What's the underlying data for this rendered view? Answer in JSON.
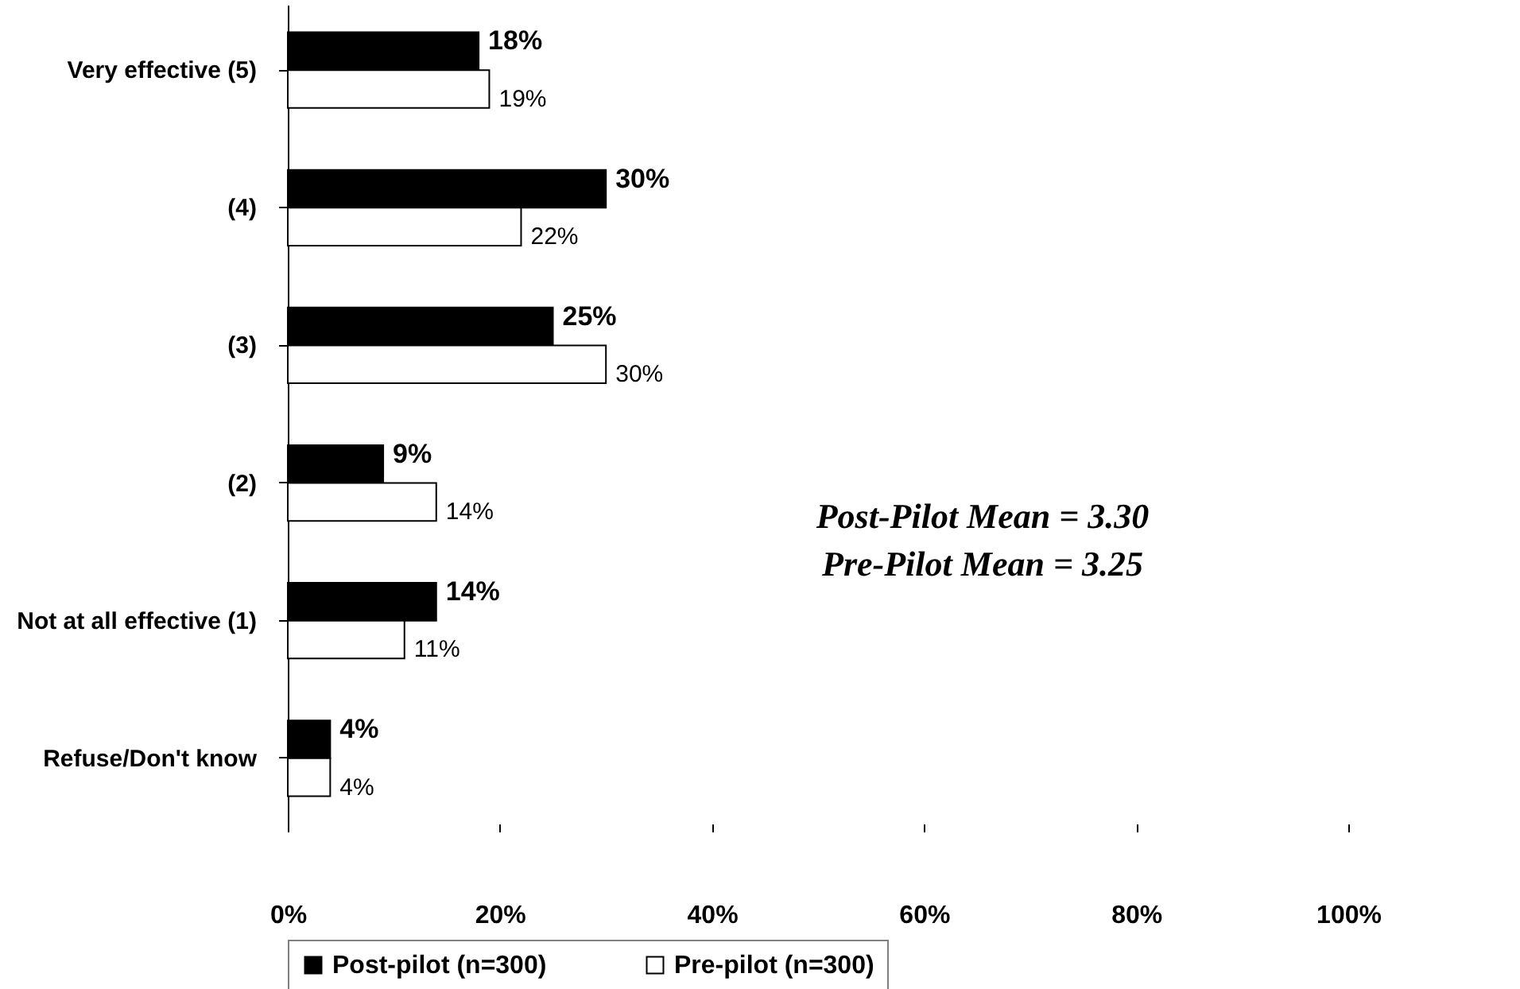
{
  "chart_data": {
    "type": "bar",
    "orientation": "horizontal",
    "categories": [
      "Very effective (5)",
      "(4)",
      "(3)",
      "(2)",
      "Not at all effective (1)",
      "Refuse/Don't know"
    ],
    "series": [
      {
        "name": "Post-pilot (n=300)",
        "color": "#000000",
        "values": [
          18,
          30,
          25,
          9,
          14,
          4
        ],
        "value_labels": [
          "18%",
          "30%",
          "25%",
          "9%",
          "14%",
          "4%"
        ]
      },
      {
        "name": "Pre-pilot (n=300)",
        "color": "#ffffff",
        "values": [
          19,
          22,
          30,
          14,
          11,
          4
        ],
        "value_labels": [
          "19%",
          "22%",
          "30%",
          "14%",
          "11%",
          "4%"
        ]
      }
    ],
    "xlim": [
      0,
      100
    ],
    "xticks": [
      {
        "value": 0,
        "label": "0%"
      },
      {
        "value": 20,
        "label": "20%"
      },
      {
        "value": 40,
        "label": "40%"
      },
      {
        "value": 60,
        "label": "60%"
      },
      {
        "value": 80,
        "label": "80%"
      },
      {
        "value": 100,
        "label": "100%"
      }
    ],
    "grid": false,
    "legend": "bottom",
    "annotations": [
      "Post-Pilot Mean = 3.30",
      "Pre-Pilot Mean = 3.25"
    ]
  }
}
